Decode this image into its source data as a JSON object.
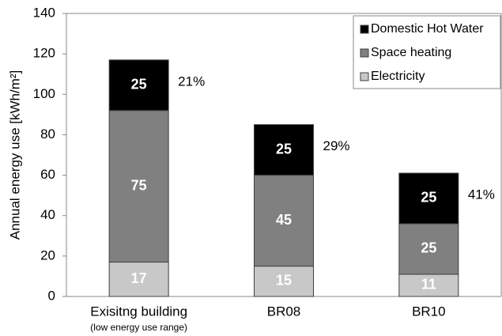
{
  "chart_data": {
    "type": "stacked_bar",
    "y_label": "Annual energy use [kWh/m²]",
    "categories": [
      "Exisitng building",
      "BR08",
      "BR10"
    ],
    "category_notes": [
      "(low energy use range)",
      null,
      null
    ],
    "series": [
      {
        "name": "Electricity",
        "color": "#c8c8c8",
        "values": [
          17,
          15,
          11
        ]
      },
      {
        "name": "Space heating",
        "color": "#808080",
        "values": [
          75,
          45,
          25
        ]
      },
      {
        "name": "Domestic Hot Water",
        "color": "#000000",
        "values": [
          25,
          25,
          25
        ]
      }
    ],
    "annotations": [
      "21%",
      "29%",
      "41%"
    ],
    "ylim": [
      0,
      140
    ],
    "yticks": [
      0,
      20,
      40,
      60,
      80,
      100,
      120,
      140
    ],
    "grid": false,
    "legend": "top-right"
  }
}
